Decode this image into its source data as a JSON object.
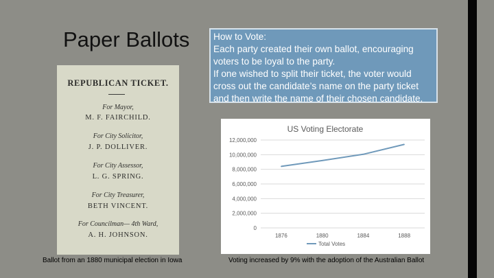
{
  "slide": {
    "title": "Paper Ballots",
    "how_to_vote": [
      "How to Vote:",
      "Each party created their own ballot, encouraging",
      "voters to be loyal to the party.",
      "If one wished to split their ticket, the voter would",
      "cross out the candidate’s name on the party ticket",
      "and then write the name of their chosen candidate."
    ],
    "ballot_caption": "Ballot from an 1880 municipal election in Iowa",
    "chart_caption": "Voting increased by 9% with the adoption of the Australian Ballot"
  },
  "ballot": {
    "heading": "REPUBLICAN TICKET.",
    "entries": [
      {
        "office": "For Mayor,",
        "candidate": "M. F. FAIRCHILD."
      },
      {
        "office": "For City Solicitor,",
        "candidate": "J. P. DOLLIVER."
      },
      {
        "office": "For City Assessor,",
        "candidate": "L. G. SPRING."
      },
      {
        "office": "For City Treasurer,",
        "candidate": "BETH VINCENT."
      },
      {
        "office": "For Councilman— 4th Ward,",
        "candidate": "A. H. JOHNSON."
      }
    ]
  },
  "colors": {
    "line": "#6f99ba",
    "grid": "#d9d9d9",
    "tick_text": "#595959"
  },
  "chart_data": {
    "type": "line",
    "title": "US Voting Electorate",
    "categories": [
      "1876",
      "1880",
      "1884",
      "1888"
    ],
    "series": [
      {
        "name": "Total Votes",
        "values": [
          8400000,
          9200000,
          10050000,
          11400000
        ]
      }
    ],
    "ylim": [
      0,
      12000000
    ],
    "yticks": [
      0,
      2000000,
      4000000,
      6000000,
      8000000,
      10000000,
      12000000
    ],
    "ytick_labels": [
      "0",
      "2,000,000",
      "4,000,000",
      "6,000,000",
      "8,000,000",
      "10,000,000",
      "12,000,000"
    ],
    "xlabel": "",
    "ylabel": "",
    "legend": "bottom"
  }
}
